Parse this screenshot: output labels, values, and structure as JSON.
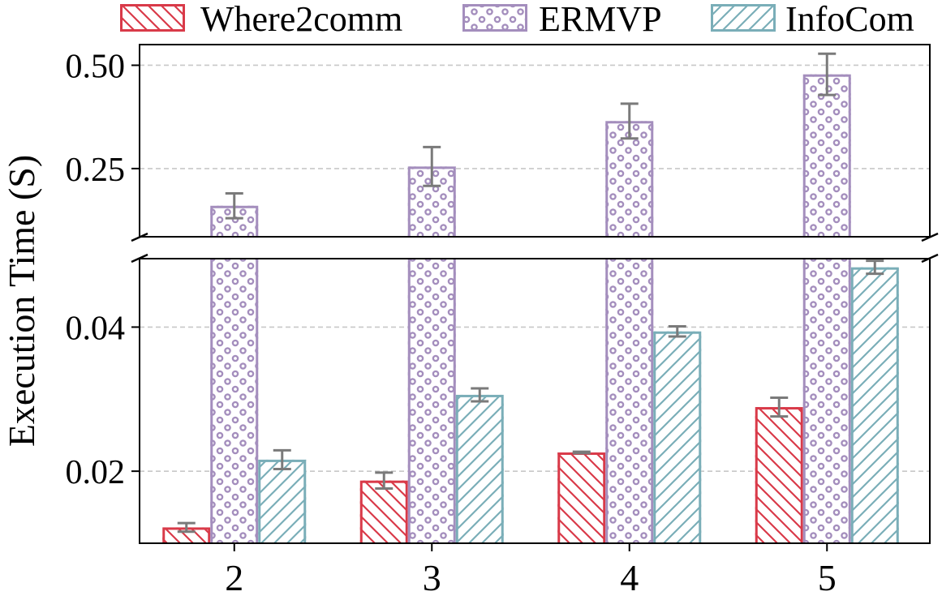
{
  "chart_data": {
    "type": "bar",
    "broken_axis": true,
    "ylabel": "Execution Time (S)",
    "xlabel": "",
    "categories": [
      "2",
      "3",
      "4",
      "5"
    ],
    "grid": true,
    "legend_position": "top",
    "upper_panel": {
      "ylim": [
        0.085,
        0.55
      ],
      "yticks": [
        0.25,
        0.5
      ],
      "ytick_labels": [
        "0.25",
        "0.50"
      ]
    },
    "lower_panel": {
      "ylim": [
        0.01,
        0.0495
      ],
      "yticks": [
        0.02,
        0.04
      ],
      "ytick_labels": [
        "0.02",
        "0.04"
      ]
    },
    "series": [
      {
        "name": "Where2comm",
        "color": "#d93a49",
        "pattern": "backslash-hatch",
        "values": [
          0.0122,
          0.0187,
          0.0226,
          0.0289
        ],
        "errors": [
          0.0006,
          0.0011,
          0.0001,
          0.0013
        ]
      },
      {
        "name": "ERMVP",
        "color": "#a48ebd",
        "pattern": "dots",
        "values": [
          0.16,
          0.255,
          0.365,
          0.478
        ],
        "errors": [
          0.03,
          0.047,
          0.042,
          0.05
        ]
      },
      {
        "name": "InfoCom",
        "color": "#7aaeb8",
        "pattern": "slash-hatch",
        "values": [
          0.0216,
          0.0306,
          0.0394,
          0.0483
        ],
        "errors": [
          0.0013,
          0.0009,
          0.0007,
          0.0009
        ]
      }
    ]
  }
}
